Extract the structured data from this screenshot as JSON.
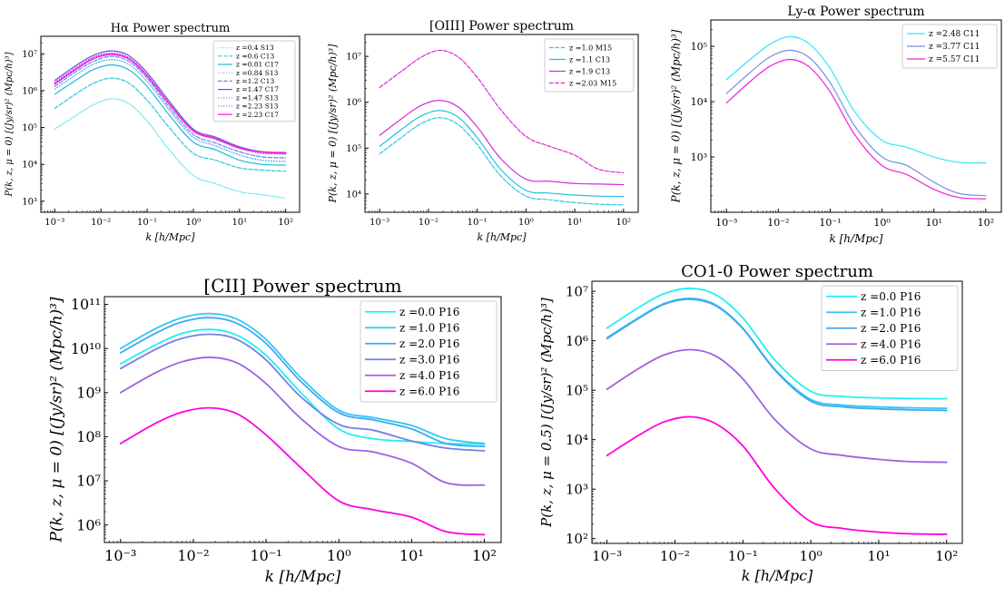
{
  "chart_data": [
    {
      "type": "line",
      "title": "Hα Power spectrum",
      "xlabel": "k [h/Mpc]",
      "ylabel": "P(k, z, μ = 0) [(Jy/sr)² (Mpc/h)³]",
      "xscale": "log",
      "yscale": "log",
      "xlim": [
        0.0005,
        200
      ],
      "ylim": [
        500,
        30000000
      ],
      "xticks": [
        0.001,
        0.01,
        0.1,
        1,
        10,
        100
      ],
      "xtick_labels": [
        "10⁻³",
        "10⁻²",
        "10⁻¹",
        "10⁰",
        "10¹",
        "10²"
      ],
      "yticks": [
        1000,
        10000,
        100000,
        1000000,
        10000000
      ],
      "ytick_labels": [
        "10³",
        "10⁴",
        "10⁵",
        "10⁶",
        "10⁷"
      ],
      "legend_position": "top-right",
      "x": [
        0.001,
        0.003,
        0.007,
        0.017,
        0.04,
        0.1,
        0.3,
        1,
        3,
        10,
        30,
        100
      ],
      "series": [
        {
          "name": "z =0.4 S13",
          "color": "#40e0e8",
          "dash": "dotted",
          "values": [
            90000,
            220000,
            420000,
            600000,
            450000,
            150000,
            25000,
            5000,
            3000,
            1800,
            1500,
            1200
          ]
        },
        {
          "name": "z =0.6 C13",
          "color": "#28c8e0",
          "dash": "dashed",
          "values": [
            330000,
            850000,
            1600000,
            2200000,
            1600000,
            550000,
            100000,
            20000,
            13000,
            8000,
            7000,
            6500
          ]
        },
        {
          "name": "z =0.81 C17",
          "color": "#20b8d8",
          "dash": "solid",
          "values": [
            800000,
            2000000,
            3800000,
            5000000,
            3700000,
            1300000,
            220000,
            40000,
            25000,
            13000,
            10000,
            9500
          ]
        },
        {
          "name": "z =0.84 S13",
          "color": "#4aa8e8",
          "dash": "dotted",
          "values": [
            1100000,
            2800000,
            5300000,
            7000000,
            5200000,
            1800000,
            300000,
            55000,
            32000,
            18000,
            13000,
            12000
          ]
        },
        {
          "name": "z =1.2 C13",
          "color": "#6a88e0",
          "dash": "dashed",
          "values": [
            1300000,
            3400000,
            6300000,
            8500000,
            6300000,
            2200000,
            360000,
            65000,
            38000,
            22000,
            16000,
            15000
          ]
        },
        {
          "name": "z =1.47 C17",
          "color": "#7050d0",
          "dash": "solid",
          "values": [
            1900000,
            5000000,
            9200000,
            12000000,
            9000000,
            3100000,
            520000,
            90000,
            55000,
            30000,
            22000,
            20000
          ]
        },
        {
          "name": "z =1.47 S13",
          "color": "#9a60e0",
          "dash": "dotted",
          "values": [
            1600000,
            4100000,
            7800000,
            10000000,
            7600000,
            2600000,
            440000,
            80000,
            48000,
            27000,
            20000,
            19000
          ]
        },
        {
          "name": "z =2.23 S13",
          "color": "#c040d8",
          "dash": "dotted",
          "values": [
            1700000,
            4400000,
            8200000,
            10500000,
            7900000,
            2700000,
            460000,
            85000,
            52000,
            29000,
            21000,
            20000
          ]
        },
        {
          "name": "z =2.23 C17",
          "color": "#ff10e8",
          "dash": "solid",
          "values": [
            1500000,
            3900000,
            7400000,
            9500000,
            7200000,
            2500000,
            430000,
            80000,
            50000,
            28000,
            22000,
            21000
          ]
        }
      ]
    },
    {
      "type": "line",
      "title": "[OIII] Power spectrum",
      "xlabel": "k [h/Mpc]",
      "ylabel": "P(k, z, μ = 0) [(Jy/sr)² (Mpc/h)³]",
      "xscale": "log",
      "yscale": "log",
      "xlim": [
        0.0005,
        200
      ],
      "ylim": [
        4000,
        30000000
      ],
      "xticks": [
        0.001,
        0.01,
        0.1,
        1,
        10,
        100
      ],
      "xtick_labels": [
        "10⁻³",
        "10⁻²",
        "10⁻¹",
        "10⁰",
        "10¹",
        "10²"
      ],
      "yticks": [
        10000,
        100000,
        1000000,
        10000000
      ],
      "ytick_labels": [
        "10⁴",
        "10⁵",
        "10⁶",
        "10⁷"
      ],
      "legend_position": "top-right",
      "x": [
        0.001,
        0.003,
        0.007,
        0.017,
        0.04,
        0.1,
        0.3,
        1,
        3,
        10,
        30,
        100
      ],
      "series": [
        {
          "name": "z =1.0 M15",
          "color": "#20c8e8",
          "dash": "dashed",
          "values": [
            75000,
            180000,
            340000,
            460000,
            330000,
            120000,
            25000,
            9000,
            7500,
            6500,
            6000,
            5800
          ]
        },
        {
          "name": "z =1.1 C13",
          "color": "#20c0e0",
          "dash": "solid",
          "values": [
            110000,
            270000,
            500000,
            660000,
            480000,
            170000,
            35000,
            12000,
            10500,
            9500,
            9000,
            8800
          ]
        },
        {
          "name": "z =1.9 C13",
          "color": "#d030d8",
          "dash": "solid",
          "values": [
            190000,
            460000,
            850000,
            1100000,
            800000,
            290000,
            60000,
            21000,
            19000,
            17000,
            16500,
            16000
          ]
        },
        {
          "name": "z =2.03 M15",
          "color": "#e820d8",
          "dash": "dashed",
          "values": [
            2100000,
            5000000,
            9500000,
            13500000,
            9800000,
            3500000,
            700000,
            180000,
            110000,
            70000,
            35000,
            29000
          ]
        }
      ]
    },
    {
      "type": "line",
      "title": "Ly-α Power spectrum",
      "xlabel": "k [h/Mpc]",
      "ylabel": "P(k, z, μ = 0) [(Jy/sr)² (Mpc/h)³]",
      "xscale": "log",
      "yscale": "log",
      "xlim": [
        0.0005,
        200
      ],
      "ylim": [
        100,
        300000
      ],
      "xticks": [
        0.001,
        0.01,
        0.1,
        1,
        10,
        100
      ],
      "xtick_labels": [
        "10⁻³",
        "10⁻²",
        "10⁻¹",
        "10⁰",
        "10¹",
        "10²"
      ],
      "yticks": [
        1000,
        10000,
        100000
      ],
      "ytick_labels": [
        "10³",
        "10⁴",
        "10⁵"
      ],
      "legend_position": "top-right",
      "x": [
        0.001,
        0.003,
        0.007,
        0.017,
        0.04,
        0.1,
        0.3,
        1,
        3,
        10,
        30,
        100
      ],
      "series": [
        {
          "name": "z =2.48 C11",
          "color": "#30e8f0",
          "dash": "solid",
          "values": [
            25000,
            60000,
            110000,
            150000,
            110000,
            40000,
            6500,
            2000,
            1500,
            1000,
            800,
            780
          ]
        },
        {
          "name": "z =3.77 C11",
          "color": "#7890e0",
          "dash": "solid",
          "values": [
            14000,
            35000,
            65000,
            85000,
            62000,
            22000,
            3600,
            1000,
            700,
            350,
            220,
            200
          ]
        },
        {
          "name": "z =5.57 C11",
          "color": "#f020d8",
          "dash": "solid",
          "values": [
            9500,
            24000,
            44000,
            58000,
            42000,
            15000,
            2500,
            700,
            480,
            260,
            185,
            175
          ]
        }
      ]
    },
    {
      "type": "line",
      "title": "[CII] Power spectrum",
      "xlabel": "k [h/Mpc]",
      "ylabel": "P(k, z, μ = 0) [(Jy/sr)² (Mpc/h)³]",
      "xscale": "log",
      "yscale": "log",
      "xlim": [
        0.0006,
        170
      ],
      "ylim": [
        400000,
        150000000000
      ],
      "xticks": [
        0.001,
        0.01,
        0.1,
        1,
        10,
        100
      ],
      "xtick_labels": [
        "10⁻³",
        "10⁻²",
        "10⁻¹",
        "10⁰",
        "10¹",
        "10²"
      ],
      "yticks": [
        1000000,
        10000000,
        100000000,
        1000000000,
        10000000000,
        100000000000
      ],
      "ytick_labels": [
        "10⁶",
        "10⁷",
        "10⁸",
        "10⁹",
        "10¹⁰",
        "10¹¹"
      ],
      "legend_position": "top-right",
      "x": [
        0.001,
        0.003,
        0.007,
        0.017,
        0.04,
        0.1,
        0.3,
        1,
        3,
        10,
        30,
        100
      ],
      "series": [
        {
          "name": "z =0.0 P16",
          "color": "#20f0f0",
          "dash": "solid",
          "values": [
            4500000000,
            12000000000,
            22000000000,
            27000000000,
            20000000000,
            7000000000,
            1000000000,
            150000000,
            90000000,
            78000000,
            70000000,
            68000000
          ]
        },
        {
          "name": "z =1.0 P16",
          "color": "#30c8f0",
          "dash": "solid",
          "values": [
            10000000000,
            28000000000,
            50000000000,
            62000000000,
            46000000000,
            16000000000,
            2200000000,
            400000000,
            270000000,
            180000000,
            90000000,
            70000000
          ]
        },
        {
          "name": "z =2.0 P16",
          "color": "#40a8f0",
          "dash": "solid",
          "values": [
            8000000000,
            22000000000,
            40000000000,
            50000000000,
            37000000000,
            13000000000,
            1800000000,
            350000000,
            240000000,
            150000000,
            70000000,
            60000000
          ]
        },
        {
          "name": "z =3.0 P16",
          "color": "#7080e8",
          "dash": "solid",
          "values": [
            3500000000,
            9500000000,
            17000000000,
            21000000000,
            16000000000,
            5500000000,
            800000000,
            190000000,
            140000000,
            80000000,
            55000000,
            48000000
          ]
        },
        {
          "name": "z =4.0 P16",
          "color": "#a060e0",
          "dash": "solid",
          "values": [
            1000000000,
            2800000000,
            5000000000,
            6300000000,
            4700000000,
            1600000000,
            260000000,
            60000000,
            45000000,
            25000000,
            9000000,
            8000000
          ]
        },
        {
          "name": "z =6.0 P16",
          "color": "#ff00e0",
          "dash": "solid",
          "values": [
            70000000,
            200000000,
            360000000,
            450000000,
            330000000,
            110000000,
            20000000,
            3500000,
            2200000,
            1500000,
            700000,
            600000
          ]
        }
      ]
    },
    {
      "type": "line",
      "title": "CO1-0 Power spectrum",
      "xlabel": "k [h/Mpc]",
      "ylabel": "P(k, z, μ = 0.5) [(Jy/sr)² (Mpc/h)³]",
      "xscale": "log",
      "yscale": "log",
      "xlim": [
        0.0006,
        170
      ],
      "ylim": [
        80,
        16000000
      ],
      "xticks": [
        0.001,
        0.01,
        0.1,
        1,
        10,
        100
      ],
      "xtick_labels": [
        "10⁻³",
        "10⁻²",
        "10⁻¹",
        "10⁰",
        "10¹",
        "10²"
      ],
      "yticks": [
        100,
        1000,
        10000,
        100000,
        1000000,
        10000000
      ],
      "ytick_labels": [
        "10²",
        "10³",
        "10⁴",
        "10⁵",
        "10⁶",
        "10⁷"
      ],
      "legend_position": "top-right",
      "x": [
        0.001,
        0.003,
        0.007,
        0.017,
        0.04,
        0.1,
        0.3,
        1,
        3,
        10,
        30,
        100
      ],
      "series": [
        {
          "name": "z =0.0 P16",
          "color": "#20f0f0",
          "dash": "solid",
          "values": [
            1800000,
            4800000,
            9000000,
            11500000,
            8500000,
            2900000,
            400000,
            95000,
            75000,
            70000,
            68000,
            67000
          ]
        },
        {
          "name": "z =1.0 P16",
          "color": "#30c8f0",
          "dash": "solid",
          "values": [
            1150000,
            3000000,
            5700000,
            7200000,
            5300000,
            1800000,
            260000,
            65000,
            50000,
            46000,
            44000,
            43000
          ]
        },
        {
          "name": "z =2.0 P16",
          "color": "#40a8f0",
          "dash": "solid",
          "values": [
            1100000,
            2900000,
            5500000,
            6900000,
            5100000,
            1750000,
            250000,
            60000,
            46000,
            42000,
            40000,
            39000
          ]
        },
        {
          "name": "z =4.0 P16",
          "color": "#a060e0",
          "dash": "solid",
          "values": [
            105000,
            280000,
            520000,
            660000,
            490000,
            170000,
            25000,
            6500,
            4800,
            4000,
            3600,
            3500
          ]
        },
        {
          "name": "z =6.0 P16",
          "color": "#ff00e0",
          "dash": "solid",
          "values": [
            4800,
            12500,
            23000,
            29000,
            21000,
            7500,
            1000,
            220,
            160,
            135,
            125,
            122
          ]
        }
      ]
    }
  ]
}
